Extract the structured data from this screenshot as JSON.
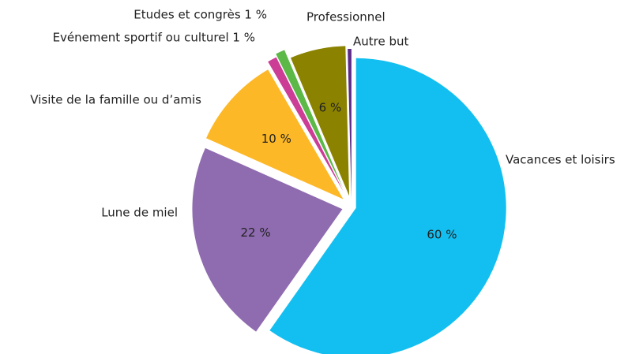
{
  "chart_data": {
    "type": "pie",
    "categories": [
      "Vacances et loisirs",
      "Lune de miel",
      "Visite de la famille ou d’amis",
      "Evénement sportif ou culturel 1 %",
      "Etudes et congrès 1 %",
      "Professionnel",
      "Autre but"
    ],
    "values": [
      60,
      22,
      10,
      1,
      1,
      6,
      0.4
    ],
    "value_labels": [
      "60 %",
      "22 %",
      "10 %",
      null,
      null,
      "6 %",
      null
    ],
    "colors": [
      "#12bff0",
      "#8f6bb0",
      "#fdb827",
      "#cc3d96",
      "#5cb847",
      "#8b8200",
      "#5b2a86"
    ]
  }
}
